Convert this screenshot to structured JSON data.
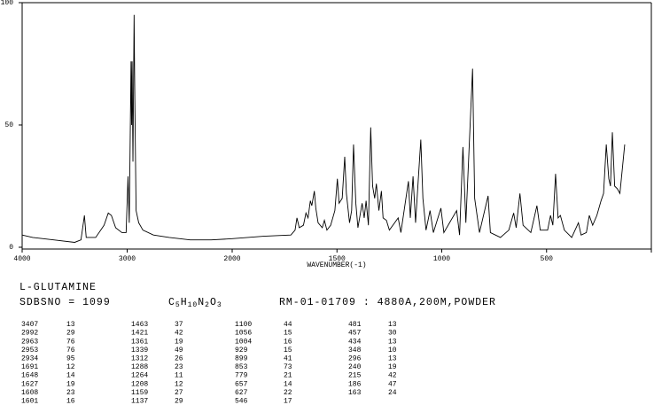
{
  "chart_data": {
    "type": "line",
    "color": "#000000",
    "x_label": "WAVENUMBER(-1)",
    "xlim": [
      4000,
      0
    ],
    "xticks": [
      4000,
      3000,
      2000,
      1500,
      1000,
      500
    ],
    "ylim": [
      0,
      100
    ],
    "yticks": [
      0,
      50,
      100
    ],
    "x": [
      4000,
      3900,
      3700,
      3500,
      3440,
      3407,
      3390,
      3300,
      3220,
      3180,
      3150,
      3110,
      3050,
      3010,
      2992,
      2980,
      2963,
      2958,
      2953,
      2945,
      2934,
      2927,
      2915,
      2890,
      2850,
      2750,
      2600,
      2400,
      2200,
      2000,
      1850,
      1720,
      1700,
      1691,
      1680,
      1660,
      1648,
      1638,
      1627,
      1620,
      1608,
      1601,
      1590,
      1570,
      1560,
      1548,
      1530,
      1510,
      1498,
      1490,
      1475,
      1463,
      1455,
      1440,
      1430,
      1421,
      1410,
      1400,
      1380,
      1370,
      1361,
      1350,
      1339,
      1330,
      1320,
      1312,
      1300,
      1288,
      1280,
      1264,
      1250,
      1208,
      1195,
      1159,
      1150,
      1137,
      1125,
      1100,
      1090,
      1075,
      1056,
      1040,
      1004,
      990,
      929,
      915,
      899,
      885,
      853,
      843,
      820,
      779,
      768,
      720,
      680,
      657,
      645,
      627,
      612,
      575,
      546,
      530,
      495,
      481,
      470,
      457,
      445,
      434,
      415,
      380,
      348,
      335,
      310,
      296,
      280,
      260,
      240,
      228,
      215,
      203,
      195,
      186,
      175,
      163,
      150,
      127
    ],
    "values": [
      5,
      4,
      3,
      2,
      3,
      13,
      4,
      4,
      9,
      14,
      13,
      8,
      6,
      6,
      29,
      10,
      76,
      50,
      76,
      35,
      95,
      60,
      15,
      10,
      7,
      5,
      4,
      3,
      3,
      3.5,
      4.5,
      5,
      7,
      12,
      8,
      9,
      14,
      12,
      19,
      17,
      23,
      16,
      10,
      8,
      11,
      7,
      9,
      15,
      28,
      18,
      20,
      37,
      22,
      10,
      15,
      42,
      18,
      8,
      18,
      12,
      19,
      9,
      49,
      25,
      20,
      26,
      15,
      23,
      12,
      11,
      7,
      12,
      6,
      27,
      12,
      29,
      10,
      44,
      20,
      7,
      15,
      6,
      16,
      6,
      15,
      5,
      41,
      10,
      73,
      20,
      6,
      21,
      6,
      4,
      7,
      14,
      8,
      22,
      9,
      6,
      17,
      7,
      7,
      13,
      9,
      30,
      12,
      13,
      7,
      4,
      10,
      5,
      6,
      13,
      9,
      13,
      19,
      22,
      42,
      28,
      25,
      47,
      25,
      24,
      22,
      42
    ]
  },
  "compound": "L-GLUTAMINE",
  "sdbs_no": "SDBSNO = 1099",
  "formula": "C5H10N2O3",
  "conditions": "RM-01-01709 : 4880A,200M,POWDER",
  "peak_table": {
    "rows": [
      [
        3407,
        13,
        1463,
        37,
        1100,
        44,
        481,
        13
      ],
      [
        2992,
        29,
        1421,
        42,
        1056,
        15,
        457,
        30
      ],
      [
        2963,
        76,
        1361,
        19,
        1004,
        16,
        434,
        13
      ],
      [
        2953,
        76,
        1339,
        49,
        929,
        15,
        348,
        10
      ],
      [
        2934,
        95,
        1312,
        26,
        899,
        41,
        296,
        13
      ],
      [
        1691,
        12,
        1288,
        23,
        853,
        73,
        240,
        19
      ],
      [
        1648,
        14,
        1264,
        11,
        779,
        21,
        215,
        42
      ],
      [
        1627,
        19,
        1208,
        12,
        657,
        14,
        186,
        47
      ],
      [
        1608,
        23,
        1159,
        27,
        627,
        22,
        163,
        24
      ],
      [
        1601,
        16,
        1137,
        29,
        546,
        17
      ]
    ]
  }
}
